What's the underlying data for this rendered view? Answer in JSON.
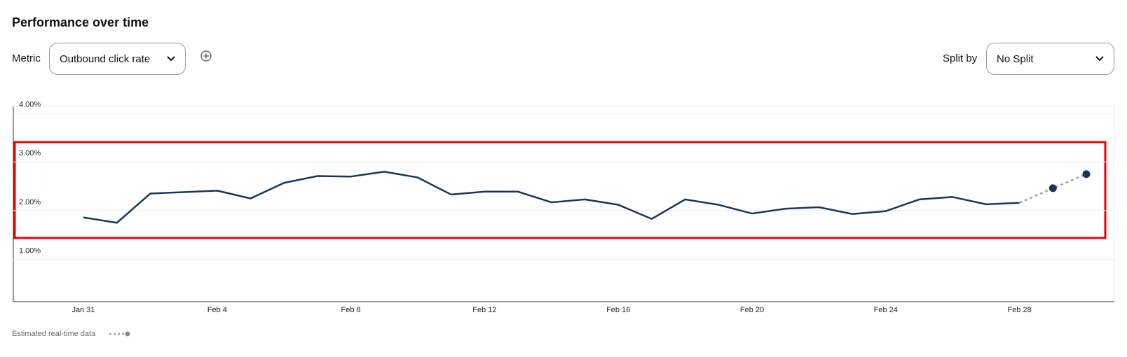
{
  "header": {
    "title": "Performance over time"
  },
  "controls": {
    "metric_label": "Metric",
    "metric_value": "Outbound click rate",
    "split_label": "Split by",
    "split_value": "No Split"
  },
  "chart_data": {
    "type": "line",
    "categories": [
      "Jan 31",
      null,
      null,
      null,
      "Feb 4",
      null,
      null,
      null,
      "Feb 8",
      null,
      null,
      null,
      "Feb 12",
      null,
      null,
      null,
      "Feb 16",
      null,
      null,
      null,
      "Feb 20",
      null,
      null,
      null,
      "Feb 24",
      null,
      null,
      null,
      "Feb 28",
      null,
      null
    ],
    "series": [
      {
        "color": "#17375e",
        "values": [
          1.86,
          1.75,
          2.35,
          2.38,
          2.41,
          2.25,
          2.57,
          2.71,
          2.7,
          2.8,
          2.68,
          2.33,
          2.39,
          2.39,
          2.17,
          2.23,
          2.12,
          1.83,
          2.23,
          2.12,
          1.94,
          2.04,
          2.07,
          1.93,
          1.99,
          2.23,
          2.28,
          2.13,
          2.16,
          null,
          null
        ]
      },
      {
        "name": "Estimated real-time data",
        "color": "#9aa5b8",
        "values": [
          null,
          null,
          null,
          null,
          null,
          null,
          null,
          null,
          null,
          null,
          null,
          null,
          null,
          null,
          null,
          null,
          null,
          null,
          null,
          null,
          null,
          null,
          null,
          null,
          null,
          null,
          null,
          null,
          2.16,
          2.46,
          2.75
        ]
      }
    ],
    "ylim": [
      0.13,
      4.14
    ],
    "yticks": [
      {
        "value": 1,
        "label": "1.00%"
      },
      {
        "value": 2,
        "label": "2.00%"
      },
      {
        "value": 3,
        "label": "3.00%"
      },
      {
        "value": 4,
        "label": "4.00%"
      }
    ],
    "grid": true
  }
}
